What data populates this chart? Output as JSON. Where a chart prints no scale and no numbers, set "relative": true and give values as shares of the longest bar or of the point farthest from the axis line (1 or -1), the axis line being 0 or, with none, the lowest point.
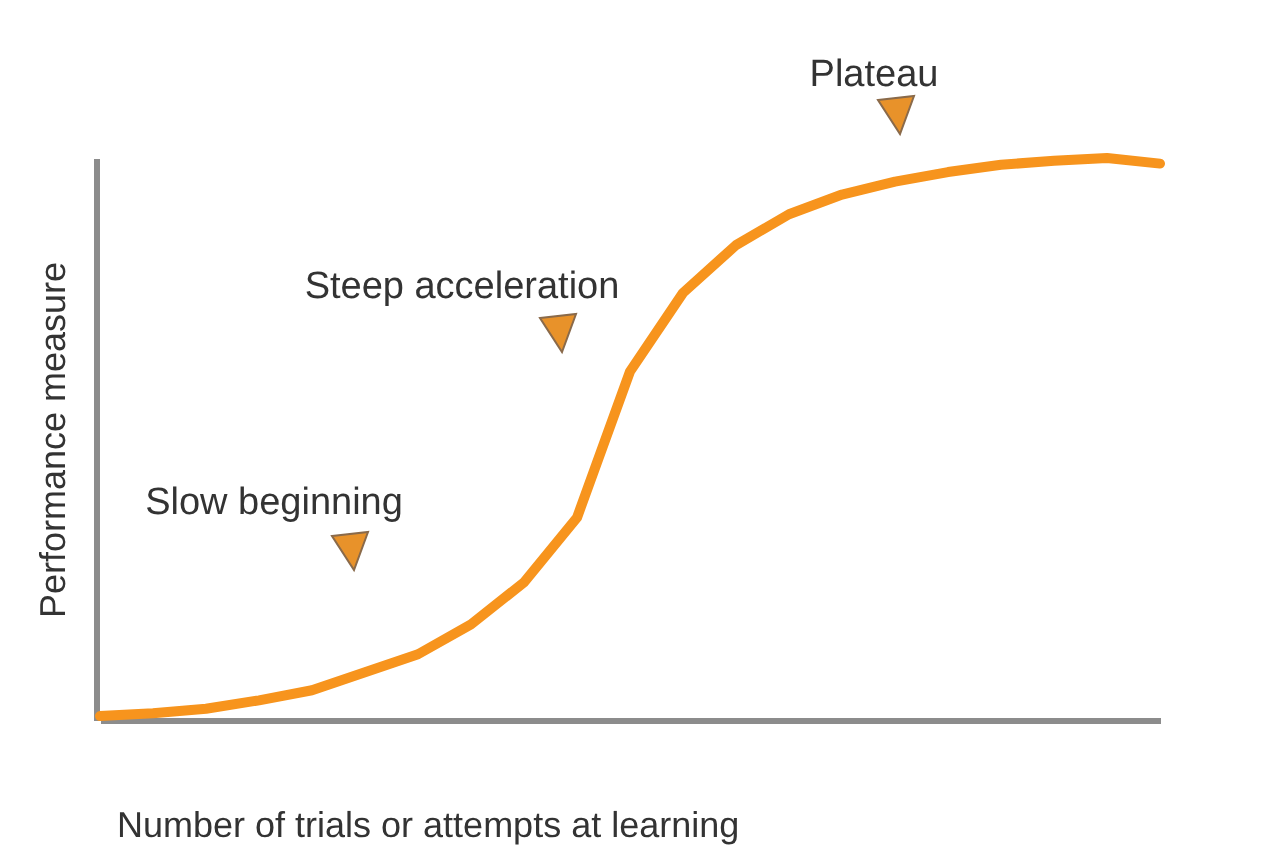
{
  "chart_data": {
    "type": "line",
    "relative": true,
    "xlabel": "Number of trials or attempts at learning",
    "ylabel": "Performance measure",
    "categories": [
      null,
      null,
      null,
      null,
      null,
      null,
      null,
      null,
      null,
      null,
      null,
      null,
      null,
      null,
      null,
      null,
      null,
      null,
      null,
      null,
      null
    ],
    "series": [
      {
        "color": "#f7941d",
        "values": [
          0.007,
          0.012,
          0.02,
          0.035,
          0.053,
          0.085,
          0.117,
          0.17,
          0.245,
          0.36,
          0.62,
          0.76,
          0.845,
          0.9,
          0.935,
          0.958,
          0.975,
          0.988,
          0.995,
          1,
          0.99
        ]
      }
    ],
    "annotations": [
      "Slow beginning",
      "Steep acceleration",
      "Plateau"
    ],
    "grid": false,
    "marker": "none",
    "line_style": "solid"
  }
}
